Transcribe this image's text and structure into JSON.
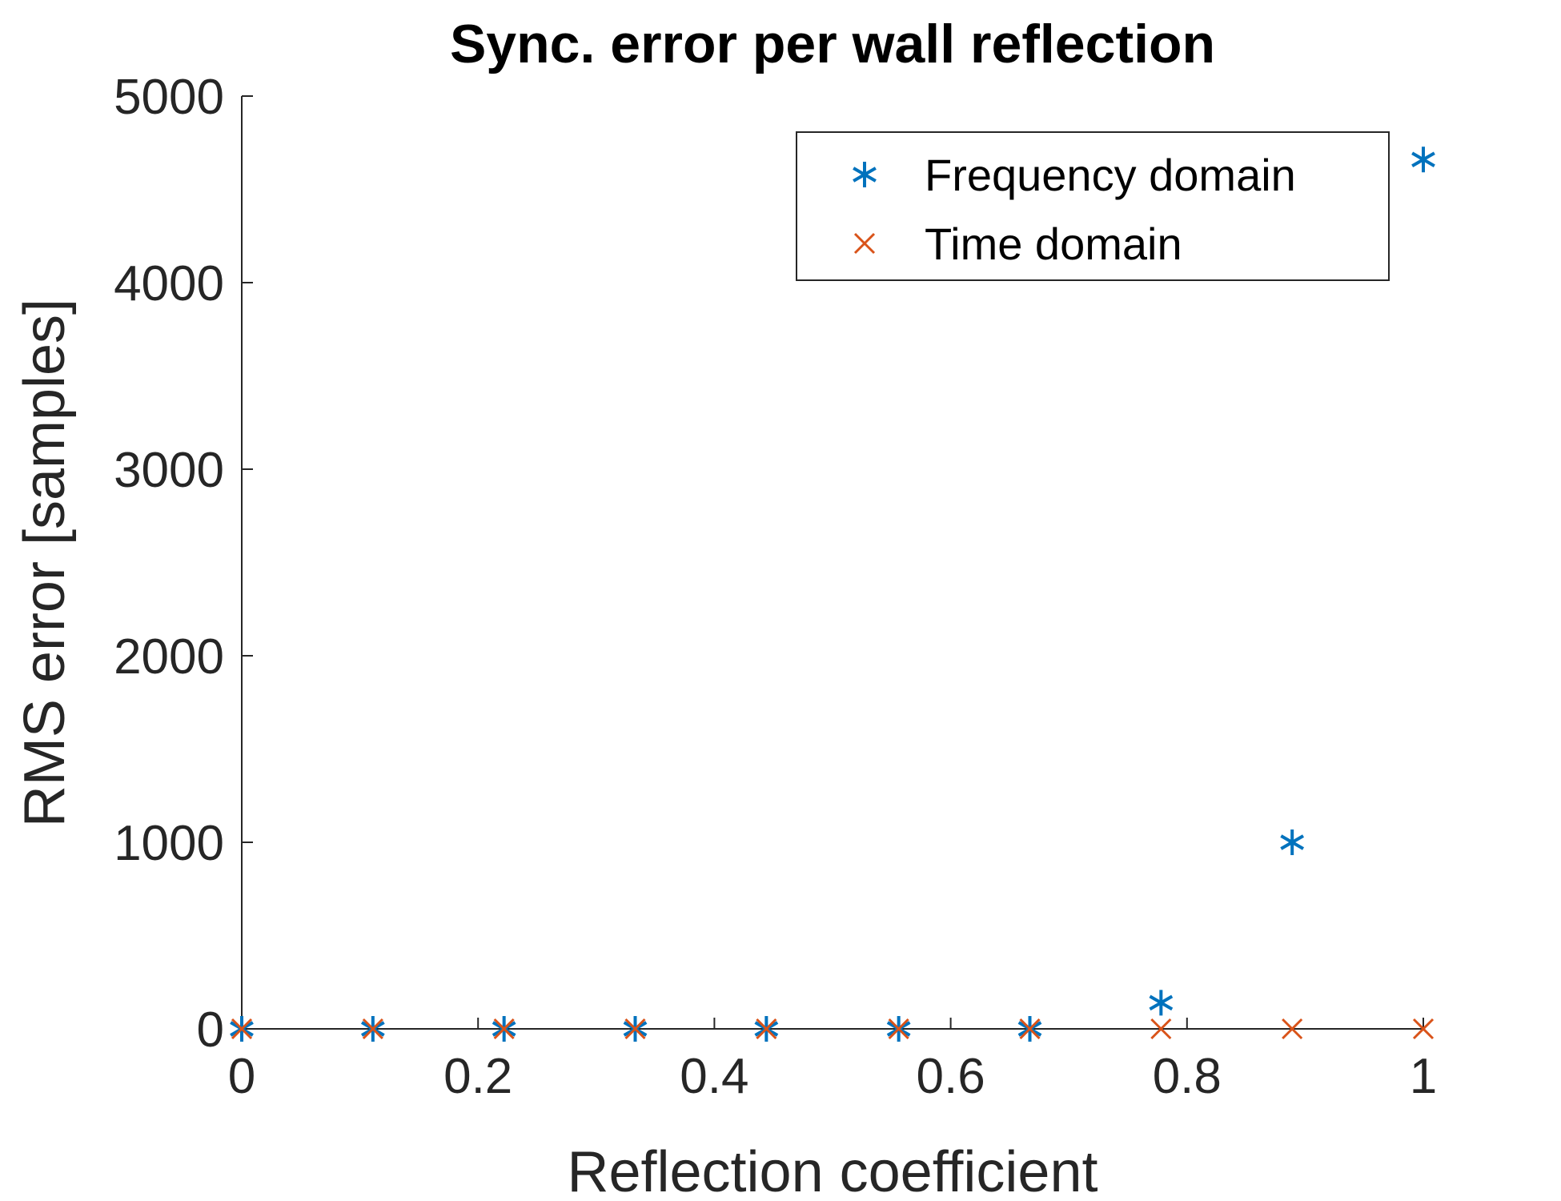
{
  "chart_data": {
    "type": "scatter",
    "title": "Sync. error per wall reflection",
    "xlabel": "Reflection coefficient",
    "ylabel": "RMS error [samples]",
    "xlim": [
      0,
      1
    ],
    "ylim": [
      0,
      5000
    ],
    "xticks": [
      "0",
      "0.2",
      "0.4",
      "0.6",
      "0.8",
      "1"
    ],
    "yticks": [
      "0",
      "1000",
      "2000",
      "3000",
      "4000",
      "5000"
    ],
    "grid": false,
    "legend_position": "top-right",
    "x": [
      0,
      0.111,
      0.222,
      0.333,
      0.444,
      0.556,
      0.667,
      0.778,
      0.889,
      1.0
    ],
    "series": [
      {
        "name": "Frequency domain",
        "marker": "asterisk",
        "color": "#0072BD",
        "values": [
          0,
          0,
          0,
          0,
          0,
          0,
          0,
          140,
          1000,
          4660
        ]
      },
      {
        "name": "Time domain",
        "marker": "x",
        "color": "#D95319",
        "values": [
          0,
          0,
          0,
          0,
          0,
          0,
          0,
          0,
          0,
          0
        ]
      }
    ]
  }
}
